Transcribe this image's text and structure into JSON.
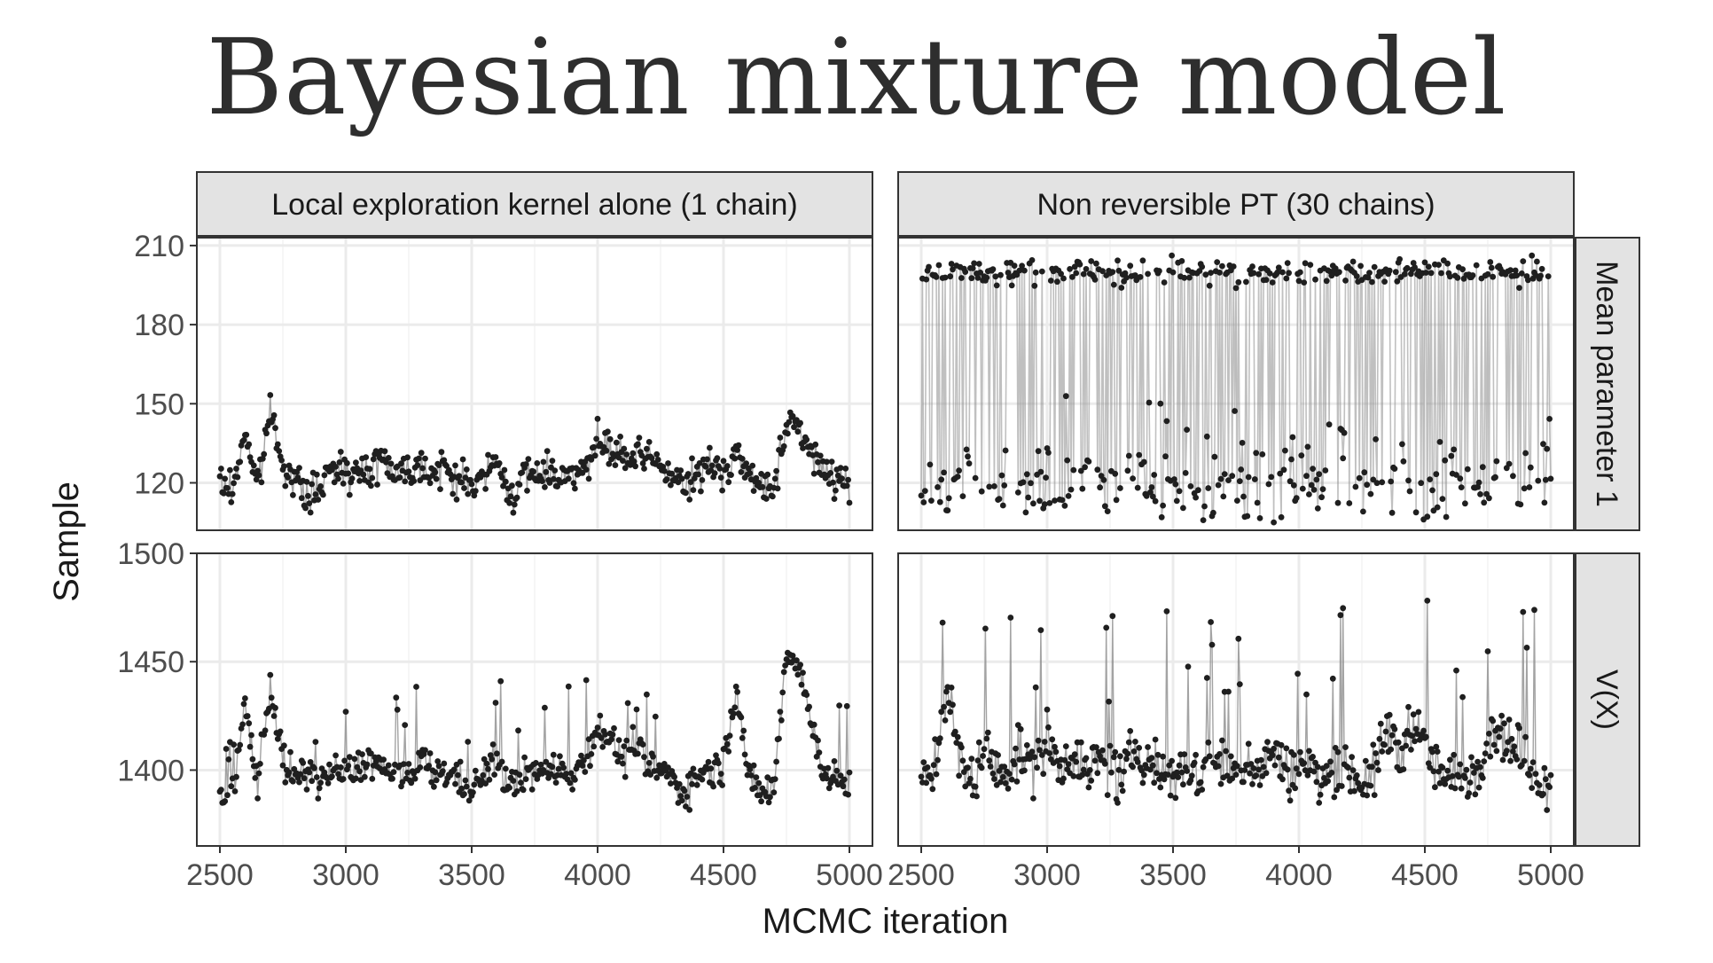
{
  "title": "Bayesian mixture model",
  "chart_data": {
    "type": "scatter",
    "subtype": "faceted trace plot (points joined by thin lines)",
    "xlabel": "MCMC iteration",
    "ylabel": "Sample",
    "xlim": [
      2500,
      5000
    ],
    "x_ticks": [
      2500,
      3000,
      3500,
      4000,
      4500,
      5000
    ],
    "columns": [
      "Local exploration kernel alone (1 chain)",
      "Non reversible PT (30 chains)"
    ],
    "rows": [
      {
        "label": "Mean parameter 1",
        "ylim": [
          102,
          213
        ],
        "y_ticks": [
          120,
          150,
          180,
          210
        ]
      },
      {
        "label": "V(X)",
        "ylim": [
          1365,
          1500
        ],
        "y_ticks": [
          1400,
          1450,
          1500
        ]
      }
    ],
    "grid": true,
    "colors": {
      "points": "#1f1f1f",
      "lines": "#8c8c8c",
      "strip_fill": "#e3e3e3",
      "panel_border": "#333333",
      "grid": "#ebebeb"
    },
    "panels": [
      {
        "row": "Mean parameter 1",
        "column": "Local exploration kernel alone (1 chain)",
        "x": [
          2500,
          2550,
          2600,
          2650,
          2700,
          2750,
          2800,
          2850,
          2900,
          2950,
          3000,
          3050,
          3100,
          3150,
          3200,
          3250,
          3300,
          3350,
          3400,
          3450,
          3500,
          3550,
          3600,
          3650,
          3700,
          3750,
          3800,
          3850,
          3900,
          3950,
          4000,
          4050,
          4100,
          4150,
          4200,
          4250,
          4300,
          4350,
          4400,
          4450,
          4500,
          4550,
          4600,
          4650,
          4700,
          4750,
          4800,
          4850,
          4900,
          4950,
          5000
        ],
        "y": [
          120,
          117,
          140,
          118,
          148,
          128,
          120,
          115,
          118,
          125,
          127,
          122,
          126,
          130,
          124,
          125,
          128,
          123,
          125,
          121,
          120,
          122,
          128,
          115,
          121,
          123,
          125,
          122,
          126,
          124,
          135,
          132,
          130,
          128,
          130,
          127,
          122,
          118,
          124,
          126,
          124,
          133,
          122,
          118,
          120,
          140,
          142,
          130,
          125,
          122,
          120
        ]
      },
      {
        "row": "Mean parameter 1",
        "column": "Non reversible PT (30 chains)",
        "x": [
          2500,
          2550,
          2600,
          2650,
          2700,
          2750,
          2800,
          2850,
          2900,
          2950,
          3000,
          3050,
          3100,
          3150,
          3200,
          3250,
          3300,
          3350,
          3400,
          3450,
          3500,
          3550,
          3600,
          3650,
          3700,
          3750,
          3800,
          3850,
          3900,
          3950,
          4000,
          4050,
          4100,
          4150,
          4200,
          4250,
          4300,
          4350,
          4400,
          4450,
          4500,
          4550,
          4600,
          4650,
          4700,
          4750,
          4800,
          4850,
          4900,
          4950,
          5000
        ],
        "y": [
          120,
          202,
          140,
          201,
          118,
          200,
          122,
          200,
          125,
          203,
          125,
          200,
          122,
          202,
          120,
          201,
          125,
          203,
          118,
          200,
          115,
          202,
          120,
          201,
          118,
          200,
          122,
          202,
          120,
          203,
          122,
          200,
          120,
          201,
          118,
          200,
          118,
          202,
          120,
          203,
          115,
          201,
          118,
          202,
          125,
          200,
          120,
          202,
          125,
          201,
          115
        ]
      },
      {
        "row": "V(X)",
        "column": "Local exploration kernel alone (1 chain)",
        "x": [
          2500,
          2550,
          2600,
          2650,
          2700,
          2750,
          2800,
          2850,
          2900,
          2950,
          3000,
          3050,
          3100,
          3150,
          3200,
          3250,
          3300,
          3350,
          3400,
          3450,
          3500,
          3550,
          3600,
          3650,
          3700,
          3750,
          3800,
          3850,
          3900,
          3950,
          4000,
          4050,
          4100,
          4150,
          4200,
          4250,
          4300,
          4350,
          4400,
          4450,
          4500,
          4550,
          4600,
          4650,
          4700,
          4750,
          4800,
          4850,
          4900,
          4950,
          5000
        ],
        "y": [
          1390,
          1385,
          1430,
          1395,
          1440,
          1405,
          1395,
          1400,
          1395,
          1400,
          1398,
          1402,
          1405,
          1400,
          1398,
          1395,
          1405,
          1398,
          1400,
          1395,
          1392,
          1398,
          1405,
          1392,
          1396,
          1400,
          1398,
          1402,
          1398,
          1405,
          1420,
          1415,
          1405,
          1410,
          1402,
          1400,
          1395,
          1390,
          1398,
          1400,
          1402,
          1440,
          1395,
          1390,
          1392,
          1455,
          1450,
          1420,
          1400,
          1395,
          1392
        ]
      },
      {
        "row": "V(X)",
        "column": "Non reversible PT (30 chains)",
        "x": [
          2500,
          2550,
          2600,
          2650,
          2700,
          2750,
          2800,
          2850,
          2900,
          2950,
          3000,
          3050,
          3100,
          3150,
          3200,
          3250,
          3300,
          3350,
          3400,
          3450,
          3500,
          3550,
          3600,
          3650,
          3700,
          3750,
          3800,
          3850,
          3900,
          3950,
          4000,
          4050,
          4100,
          4150,
          4200,
          4250,
          4300,
          4350,
          4400,
          4450,
          4500,
          4550,
          4600,
          4650,
          4700,
          4750,
          4800,
          4850,
          4900,
          4950,
          5000
        ],
        "y": [
          1395,
          1400,
          1440,
          1405,
          1395,
          1410,
          1398,
          1402,
          1408,
          1400,
          1415,
          1402,
          1410,
          1398,
          1405,
          1400,
          1395,
          1410,
          1405,
          1400,
          1398,
          1402,
          1395,
          1410,
          1400,
          1398,
          1405,
          1400,
          1410,
          1398,
          1402,
          1400,
          1395,
          1405,
          1400,
          1395,
          1398,
          1420,
          1405,
          1425,
          1410,
          1400,
          1395,
          1398,
          1400,
          1415,
          1420,
          1410,
          1405,
          1398,
          1395
        ]
      }
    ]
  }
}
